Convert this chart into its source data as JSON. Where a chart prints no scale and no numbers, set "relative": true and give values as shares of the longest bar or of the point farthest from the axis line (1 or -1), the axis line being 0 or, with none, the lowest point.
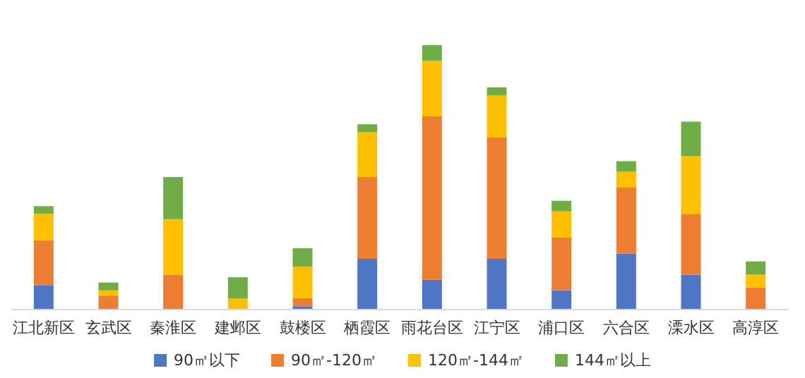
{
  "chart_data": {
    "type": "bar",
    "stacked": true,
    "relative": true,
    "legend": "bottom",
    "categories": [
      "江北新区",
      "玄武区",
      "秦淮区",
      "建邺区",
      "鼓楼区",
      "栖霞区",
      "雨花台区",
      "江宁区",
      "浦口区",
      "六合区",
      "溧水区",
      "高淳区"
    ],
    "series": [
      {
        "name": "90㎡以下",
        "color": "#4f76c4",
        "values": [
          0.09,
          0,
          0,
          0,
          0.01,
          0.19,
          0.11,
          0.19,
          0.07,
          0.21,
          0.13,
          0
        ]
      },
      {
        "name": "90㎡-120㎡",
        "color": "#ed7d31",
        "values": [
          0.17,
          0.05,
          0.13,
          0,
          0.03,
          0.31,
          0.62,
          0.46,
          0.2,
          0.25,
          0.23,
          0.08
        ]
      },
      {
        "name": "120㎡-144㎡",
        "color": "#ffc000",
        "values": [
          0.1,
          0.02,
          0.21,
          0.04,
          0.12,
          0.17,
          0.21,
          0.16,
          0.1,
          0.06,
          0.22,
          0.05
        ]
      },
      {
        "name": "144㎡以上",
        "color": "#70ad47",
        "values": [
          0.03,
          0.03,
          0.16,
          0.08,
          0.07,
          0.03,
          0.06,
          0.03,
          0.04,
          0.04,
          0.13,
          0.05
        ]
      }
    ]
  }
}
